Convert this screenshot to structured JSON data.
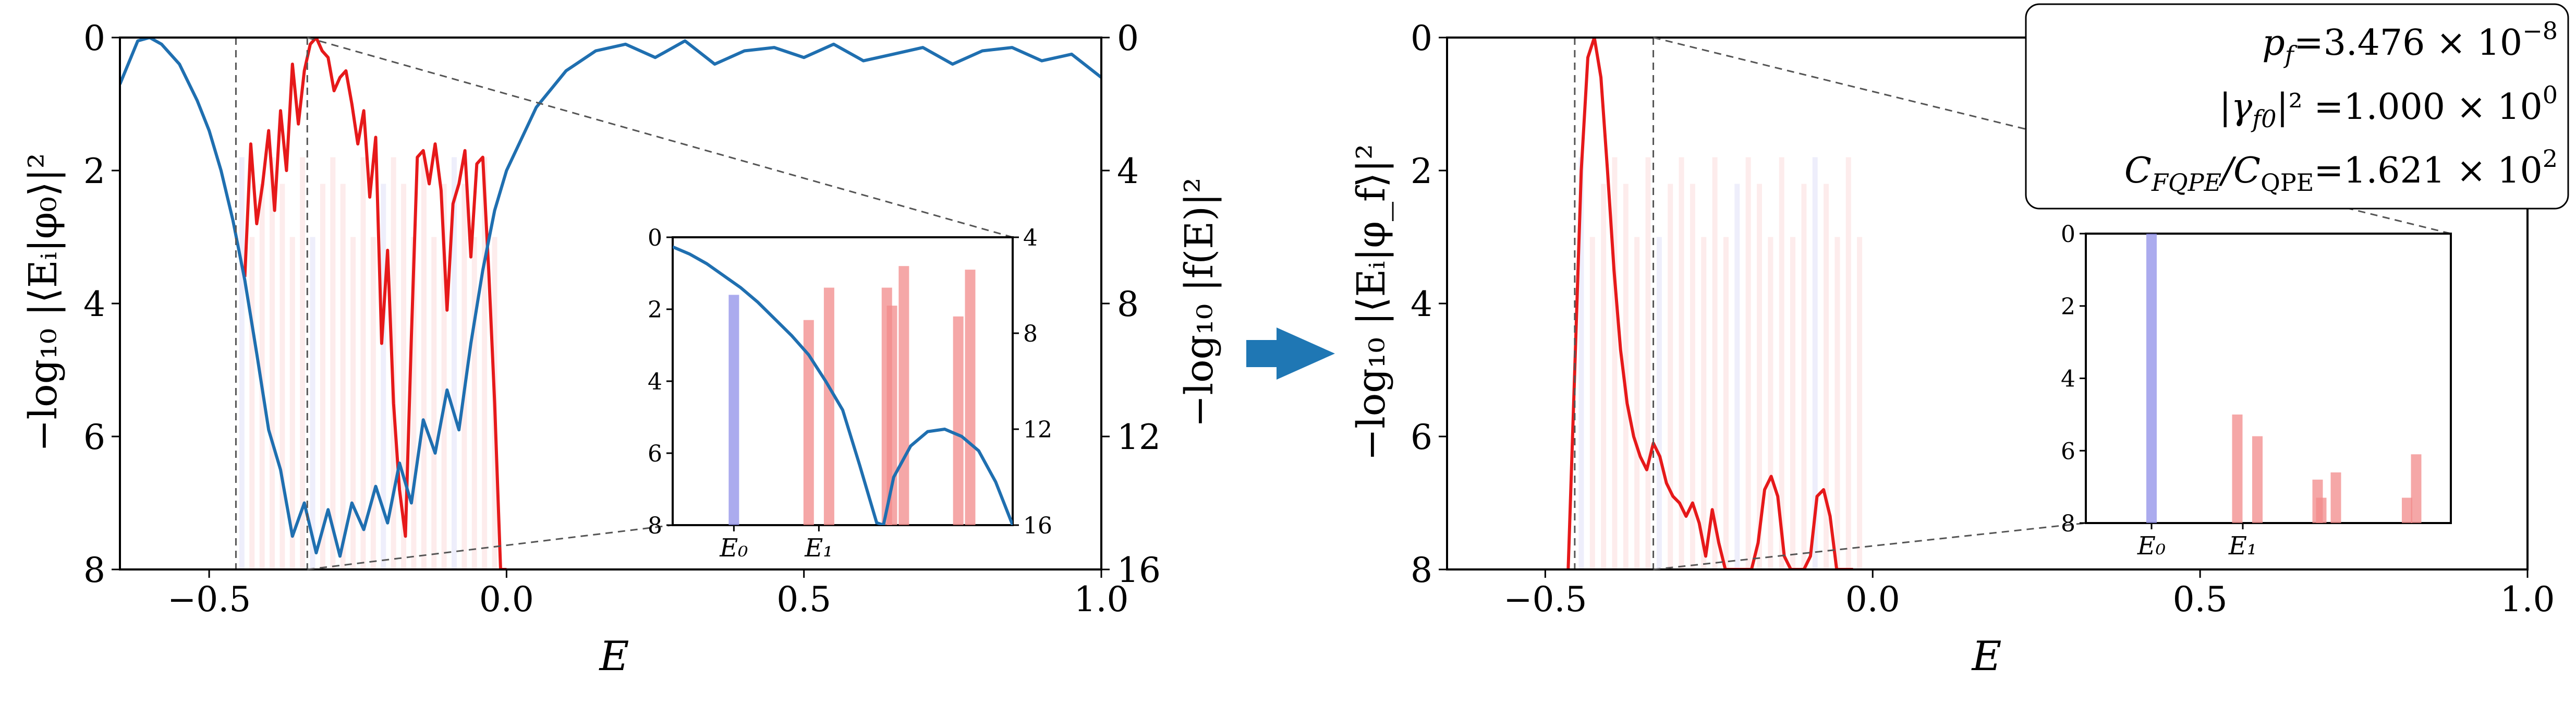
{
  "chart_data": [
    {
      "type": "line",
      "panel": "left",
      "xlim": [
        -0.65,
        1.0
      ],
      "ylim_left": [
        0,
        8
      ],
      "ylim_right": [
        0,
        16
      ],
      "y_inverted": true,
      "xticks": [
        "−0.5",
        "0.0",
        "0.5",
        "1.0"
      ],
      "xtick_values": [
        -0.5,
        0.0,
        0.5,
        1.0
      ],
      "yticks_left": [
        "0",
        "2",
        "4",
        "6",
        "8"
      ],
      "ytick_values_left": [
        0,
        2,
        4,
        6,
        8
      ],
      "yticks_right": [
        "0",
        "4",
        "8",
        "12",
        "16"
      ],
      "ytick_values_right": [
        0,
        4,
        8,
        12,
        16
      ],
      "xlabel": "E",
      "ylabel_left": "−log₁₀ |⟨Eᵢ|φ₀⟩|²",
      "ylabel_right": "−log₁₀ |f(E)|²",
      "dashed_window": [
        -0.455,
        -0.335
      ],
      "colors": {
        "red": "#e6191a",
        "blue": "#1f6fb0",
        "bar_blue": "#8f8fe8",
        "bar_red": "#f28a8a"
      },
      "series": [
        {
          "color": "#e6191a",
          "axis": "left",
          "x": [
            -0.44,
            -0.43,
            -0.42,
            -0.41,
            -0.4,
            -0.39,
            -0.38,
            -0.37,
            -0.36,
            -0.35,
            -0.34,
            -0.33,
            -0.32,
            -0.31,
            -0.3,
            -0.29,
            -0.28,
            -0.27,
            -0.26,
            -0.25,
            -0.24,
            -0.23,
            -0.22,
            -0.21,
            -0.2,
            -0.19,
            -0.18,
            -0.17,
            -0.16,
            -0.15,
            -0.14,
            -0.13,
            -0.12,
            -0.11,
            -0.1,
            -0.09,
            -0.08,
            -0.07,
            -0.06,
            -0.05,
            -0.04,
            -0.03,
            -0.02,
            -0.01,
            0.0
          ],
          "y": [
            3.6,
            1.6,
            2.8,
            2.2,
            1.4,
            2.6,
            1.1,
            2.0,
            0.4,
            1.3,
            0.5,
            0.1,
            0.0,
            0.2,
            0.3,
            0.8,
            0.6,
            0.5,
            1.0,
            1.6,
            1.1,
            2.4,
            1.5,
            4.6,
            3.2,
            5.5,
            6.8,
            7.5,
            4.5,
            1.8,
            1.7,
            2.2,
            1.6,
            2.3,
            4.1,
            2.5,
            2.2,
            1.7,
            3.3,
            1.9,
            1.8,
            3.5,
            5.5,
            8.0,
            8.0
          ]
        },
        {
          "color": "#1f6fb0",
          "axis": "right",
          "x": [
            -0.65,
            -0.62,
            -0.6,
            -0.58,
            -0.55,
            -0.52,
            -0.5,
            -0.48,
            -0.46,
            -0.44,
            -0.42,
            -0.4,
            -0.38,
            -0.36,
            -0.34,
            -0.32,
            -0.3,
            -0.28,
            -0.26,
            -0.24,
            -0.22,
            -0.2,
            -0.18,
            -0.16,
            -0.14,
            -0.12,
            -0.1,
            -0.08,
            -0.06,
            -0.04,
            -0.02,
            0.0,
            0.05,
            0.1,
            0.15,
            0.2,
            0.25,
            0.3,
            0.35,
            0.4,
            0.45,
            0.5,
            0.55,
            0.6,
            0.65,
            0.7,
            0.75,
            0.8,
            0.85,
            0.9,
            0.95,
            1.0
          ],
          "y": [
            1.4,
            0.1,
            0.0,
            0.2,
            0.8,
            1.9,
            2.8,
            4.0,
            5.5,
            7.3,
            9.5,
            11.8,
            13.0,
            15.0,
            14.0,
            15.5,
            14.2,
            15.6,
            14.0,
            14.8,
            13.5,
            14.6,
            12.8,
            14.0,
            11.5,
            12.5,
            10.6,
            11.8,
            9.2,
            7.0,
            5.2,
            4.0,
            2.1,
            1.0,
            0.4,
            0.2,
            0.6,
            0.1,
            0.8,
            0.4,
            0.3,
            0.6,
            0.2,
            0.7,
            0.5,
            0.3,
            0.8,
            0.4,
            0.3,
            0.7,
            0.5,
            1.2
          ]
        }
      ],
      "inset": {
        "ylim_left": [
          0,
          8
        ],
        "ylim_right": [
          4,
          16
        ],
        "yticks_left": [
          "0",
          "2",
          "4",
          "6",
          "8"
        ],
        "yticks_right": [
          "4",
          "8",
          "12",
          "16"
        ],
        "ytick_values_right": [
          4,
          8,
          12,
          16
        ],
        "xtick_labels": [
          "E₀",
          "E₁"
        ],
        "bars": [
          {
            "x": 0.18,
            "value": 1.6,
            "color": "#8f8fe8"
          },
          {
            "x": 0.4,
            "value": 2.3,
            "color": "#f28a8a"
          },
          {
            "x": 0.46,
            "value": 1.4,
            "color": "#f28a8a"
          },
          {
            "x": 0.63,
            "value": 1.4,
            "color": "#f28a8a"
          },
          {
            "x": 0.645,
            "value": 1.9,
            "color": "#f28a8a"
          },
          {
            "x": 0.68,
            "value": 0.8,
            "color": "#f28a8a"
          },
          {
            "x": 0.84,
            "value": 2.2,
            "color": "#f28a8a"
          },
          {
            "x": 0.875,
            "value": 0.9,
            "color": "#f28a8a"
          }
        ],
        "curve_right": {
          "x": [
            0.0,
            0.05,
            0.1,
            0.15,
            0.2,
            0.25,
            0.3,
            0.35,
            0.4,
            0.45,
            0.5,
            0.55,
            0.6,
            0.62,
            0.65,
            0.7,
            0.75,
            0.8,
            0.85,
            0.9,
            0.95,
            1.0
          ],
          "y": [
            4.4,
            4.7,
            5.1,
            5.6,
            6.1,
            6.7,
            7.4,
            8.1,
            8.9,
            10.0,
            11.2,
            13.5,
            15.9,
            16.0,
            14.0,
            12.7,
            12.1,
            12.0,
            12.3,
            12.9,
            14.2,
            16.0
          ]
        }
      }
    },
    {
      "type": "line",
      "panel": "right",
      "xlim": [
        -0.65,
        1.0
      ],
      "ylim": [
        0,
        8
      ],
      "y_inverted": true,
      "xticks": [
        "−0.5",
        "0.0",
        "0.5",
        "1.0"
      ],
      "xtick_values": [
        -0.5,
        0.0,
        0.5,
        1.0
      ],
      "yticks": [
        "0",
        "2",
        "4",
        "6",
        "8"
      ],
      "ytick_values": [
        0,
        2,
        4,
        6,
        8
      ],
      "xlabel": "E",
      "ylabel": "−log₁₀ |⟨Eᵢ|φ_f⟩|²",
      "dashed_window": [
        -0.455,
        -0.335
      ],
      "series": [
        {
          "color": "#e6191a",
          "x": [
            -0.465,
            -0.455,
            -0.445,
            -0.435,
            -0.425,
            -0.415,
            -0.405,
            -0.395,
            -0.385,
            -0.375,
            -0.365,
            -0.355,
            -0.345,
            -0.335,
            -0.325,
            -0.315,
            -0.305,
            -0.295,
            -0.285,
            -0.275,
            -0.265,
            -0.255,
            -0.245,
            -0.235,
            -0.225,
            -0.215,
            -0.205,
            -0.195,
            -0.185,
            -0.175,
            -0.165,
            -0.155,
            -0.145,
            -0.135,
            -0.125,
            -0.115,
            -0.105,
            -0.095,
            -0.085,
            -0.075,
            -0.065,
            -0.055,
            -0.045,
            -0.035,
            -0.03
          ],
          "y": [
            8.0,
            5.0,
            2.0,
            0.3,
            0.0,
            0.6,
            2.0,
            3.5,
            4.7,
            5.5,
            6.0,
            6.3,
            6.5,
            6.1,
            6.3,
            6.7,
            6.9,
            7.0,
            7.2,
            7.0,
            7.3,
            7.8,
            7.1,
            7.6,
            8.0,
            8.0,
            8.0,
            8.0,
            8.0,
            7.6,
            6.8,
            6.6,
            6.9,
            7.8,
            8.0,
            8.0,
            8.0,
            7.8,
            6.9,
            6.8,
            7.2,
            8.0,
            8.0,
            8.0,
            8.0
          ]
        }
      ],
      "annotation": [
        {
          "name": "p_f",
          "label": "p",
          "sub": "f",
          "value": "=3.476 × 10",
          "exp": "−8"
        },
        {
          "name": "gamma",
          "label": "|γ",
          "sub": "f0",
          "value": "|² =1.000 × 10",
          "exp": "0"
        },
        {
          "name": "cost",
          "label": "C",
          "sub": "FQPE",
          "mid": "/C",
          "sub2": "QPE",
          "value": "=1.621 × 10",
          "exp": "2"
        }
      ],
      "inset": {
        "ylim": [
          0,
          8
        ],
        "yticks": [
          "0",
          "2",
          "4",
          "6",
          "8"
        ],
        "xtick_labels": [
          "E₀",
          "E₁"
        ],
        "bars": [
          {
            "x": 0.18,
            "value": 0.0,
            "color": "#8f8fe8"
          },
          {
            "x": 0.415,
            "value": 5.0,
            "color": "#f28a8a"
          },
          {
            "x": 0.47,
            "value": 5.6,
            "color": "#f28a8a"
          },
          {
            "x": 0.635,
            "value": 6.8,
            "color": "#f28a8a"
          },
          {
            "x": 0.645,
            "value": 7.3,
            "color": "#f28a8a"
          },
          {
            "x": 0.685,
            "value": 6.6,
            "color": "#f28a8a"
          },
          {
            "x": 0.88,
            "value": 7.3,
            "color": "#f28a8a"
          },
          {
            "x": 0.905,
            "value": 6.1,
            "color": "#f28a8a"
          }
        ]
      }
    }
  ]
}
